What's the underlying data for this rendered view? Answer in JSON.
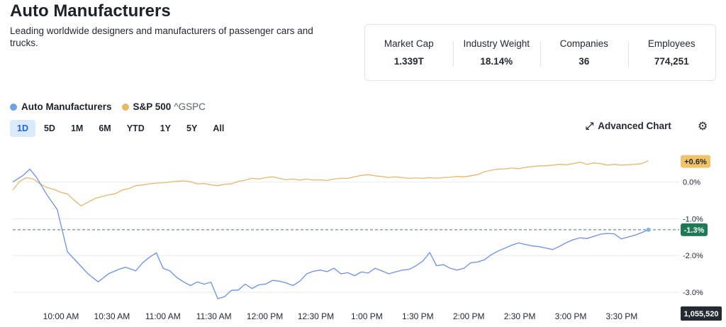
{
  "header": {
    "title": "Auto Manufacturers",
    "description": "Leading worldwide designers and manufacturers of passenger cars and trucks."
  },
  "stats": [
    {
      "label": "Market Cap",
      "value": "1.339T"
    },
    {
      "label": "Industry Weight",
      "value": "18.14%"
    },
    {
      "label": "Companies",
      "value": "36"
    },
    {
      "label": "Employees",
      "value": "774,251"
    }
  ],
  "legend": {
    "series1": "Auto Manufacturers",
    "series2": "S&P 500",
    "series2_ticker": "^GSPC"
  },
  "ranges": [
    "1D",
    "5D",
    "1M",
    "6M",
    "YTD",
    "1Y",
    "5Y",
    "All"
  ],
  "active_range": "1D",
  "toolbar": {
    "advanced_chart": "Advanced Chart",
    "advanced_icon": "expand-arrow-icon",
    "settings_icon": "gear-icon"
  },
  "chart_data": {
    "type": "line",
    "x_ticks": [
      "10:00 AM",
      "10:30 AM",
      "11:00 AM",
      "11:30 AM",
      "12:00 PM",
      "12:30 PM",
      "1:00 PM",
      "1:30 PM",
      "2:00 PM",
      "2:30 PM",
      "3:00 PM",
      "3:30 PM"
    ],
    "y_ticks": [
      "0.0%",
      "-1.0%",
      "-2.0%",
      "-3.0%"
    ],
    "ylim": [
      -3.35,
      0.9
    ],
    "grid": true,
    "reference_line": -1.3,
    "badges": {
      "sp500_last": "+0.6%",
      "auto_last": "-1.3%",
      "volume": "1,055,520"
    },
    "series": [
      {
        "name": "Auto Manufacturers",
        "color": "#6b8ff0",
        "points": [
          [
            0,
            0.0
          ],
          [
            3,
            0.18
          ],
          [
            5,
            0.35
          ],
          [
            7,
            0.12
          ],
          [
            10,
            -0.35
          ],
          [
            13,
            -0.75
          ],
          [
            16,
            -1.9
          ],
          [
            19,
            -2.2
          ],
          [
            22,
            -2.5
          ],
          [
            25,
            -2.72
          ],
          [
            28,
            -2.5
          ],
          [
            31,
            -2.38
          ],
          [
            33,
            -2.32
          ],
          [
            36,
            -2.42
          ],
          [
            38,
            -2.2
          ],
          [
            40,
            -2.05
          ],
          [
            42,
            -1.93
          ],
          [
            44,
            -2.35
          ],
          [
            46,
            -2.42
          ],
          [
            48,
            -2.6
          ],
          [
            50,
            -2.72
          ],
          [
            52,
            -2.82
          ],
          [
            54,
            -2.72
          ],
          [
            56,
            -2.78
          ],
          [
            58,
            -2.73
          ],
          [
            60,
            -3.18
          ],
          [
            62,
            -3.12
          ],
          [
            64,
            -2.95
          ],
          [
            66,
            -2.94
          ],
          [
            68,
            -2.78
          ],
          [
            70,
            -2.9
          ],
          [
            72,
            -2.8
          ],
          [
            74,
            -2.78
          ],
          [
            76,
            -2.68
          ],
          [
            78,
            -2.7
          ],
          [
            80,
            -2.75
          ],
          [
            82,
            -2.82
          ],
          [
            84,
            -2.7
          ],
          [
            86,
            -2.5
          ],
          [
            88,
            -2.43
          ],
          [
            90,
            -2.4
          ],
          [
            92,
            -2.44
          ],
          [
            94,
            -2.35
          ],
          [
            96,
            -2.5
          ],
          [
            98,
            -2.47
          ],
          [
            100,
            -2.55
          ],
          [
            102,
            -2.45
          ],
          [
            104,
            -2.48
          ],
          [
            106,
            -2.35
          ],
          [
            108,
            -2.42
          ],
          [
            110,
            -2.5
          ],
          [
            112,
            -2.45
          ],
          [
            114,
            -2.4
          ],
          [
            116,
            -2.38
          ],
          [
            118,
            -2.28
          ],
          [
            120,
            -2.15
          ],
          [
            122,
            -1.92
          ],
          [
            124,
            -2.28
          ],
          [
            126,
            -2.25
          ],
          [
            128,
            -2.35
          ],
          [
            130,
            -2.4
          ],
          [
            132,
            -2.35
          ],
          [
            134,
            -2.2
          ],
          [
            136,
            -2.18
          ],
          [
            138,
            -2.12
          ],
          [
            140,
            -1.98
          ],
          [
            142,
            -1.88
          ],
          [
            144,
            -1.8
          ],
          [
            146,
            -1.72
          ],
          [
            148,
            -1.66
          ],
          [
            150,
            -1.7
          ],
          [
            152,
            -1.74
          ],
          [
            154,
            -1.76
          ],
          [
            156,
            -1.8
          ],
          [
            158,
            -1.84
          ],
          [
            160,
            -1.75
          ],
          [
            162,
            -1.65
          ],
          [
            164,
            -1.57
          ],
          [
            166,
            -1.52
          ],
          [
            168,
            -1.54
          ],
          [
            170,
            -1.48
          ],
          [
            172,
            -1.42
          ],
          [
            174,
            -1.4
          ],
          [
            176,
            -1.41
          ],
          [
            178,
            -1.55
          ],
          [
            180,
            -1.5
          ],
          [
            182,
            -1.45
          ],
          [
            184,
            -1.38
          ],
          [
            186,
            -1.3
          ]
        ]
      },
      {
        "name": "S&P 500",
        "color": "#e7b867",
        "points": [
          [
            0,
            -0.22
          ],
          [
            2,
            0.02
          ],
          [
            4,
            0.12
          ],
          [
            6,
            0.08
          ],
          [
            8,
            -0.05
          ],
          [
            10,
            -0.15
          ],
          [
            12,
            -0.2
          ],
          [
            14,
            -0.28
          ],
          [
            16,
            -0.32
          ],
          [
            18,
            -0.5
          ],
          [
            20,
            -0.65
          ],
          [
            22,
            -0.55
          ],
          [
            24,
            -0.45
          ],
          [
            26,
            -0.4
          ],
          [
            28,
            -0.35
          ],
          [
            30,
            -0.32
          ],
          [
            32,
            -0.22
          ],
          [
            34,
            -0.18
          ],
          [
            36,
            -0.1
          ],
          [
            38,
            -0.08
          ],
          [
            40,
            -0.05
          ],
          [
            42,
            -0.03
          ],
          [
            44,
            -0.02
          ],
          [
            46,
            -0.0
          ],
          [
            48,
            0.02
          ],
          [
            50,
            0.03
          ],
          [
            52,
            0.01
          ],
          [
            54,
            -0.05
          ],
          [
            56,
            -0.04
          ],
          [
            58,
            -0.08
          ],
          [
            60,
            -0.1
          ],
          [
            62,
            -0.06
          ],
          [
            64,
            -0.05
          ],
          [
            66,
            0.02
          ],
          [
            68,
            0.05
          ],
          [
            70,
            0.1
          ],
          [
            72,
            0.08
          ],
          [
            74,
            0.12
          ],
          [
            76,
            0.14
          ],
          [
            78,
            0.1
          ],
          [
            80,
            0.06
          ],
          [
            82,
            0.08
          ],
          [
            84,
            0.05
          ],
          [
            86,
            0.08
          ],
          [
            88,
            0.05
          ],
          [
            90,
            0.06
          ],
          [
            92,
            0.04
          ],
          [
            94,
            0.08
          ],
          [
            96,
            0.1
          ],
          [
            98,
            0.1
          ],
          [
            100,
            0.14
          ],
          [
            102,
            0.18
          ],
          [
            104,
            0.2
          ],
          [
            106,
            0.17
          ],
          [
            108,
            0.15
          ],
          [
            110,
            0.12
          ],
          [
            112,
            0.14
          ],
          [
            114,
            0.12
          ],
          [
            116,
            0.1
          ],
          [
            118,
            0.11
          ],
          [
            120,
            0.1
          ],
          [
            122,
            0.12
          ],
          [
            124,
            0.1
          ],
          [
            126,
            0.12
          ],
          [
            128,
            0.13
          ],
          [
            130,
            0.15
          ],
          [
            132,
            0.14
          ],
          [
            134,
            0.17
          ],
          [
            136,
            0.2
          ],
          [
            138,
            0.28
          ],
          [
            140,
            0.32
          ],
          [
            142,
            0.35
          ],
          [
            144,
            0.36
          ],
          [
            146,
            0.38
          ],
          [
            148,
            0.36
          ],
          [
            150,
            0.4
          ],
          [
            152,
            0.42
          ],
          [
            154,
            0.44
          ],
          [
            156,
            0.44
          ],
          [
            158,
            0.46
          ],
          [
            160,
            0.48
          ],
          [
            162,
            0.47
          ],
          [
            164,
            0.5
          ],
          [
            166,
            0.54
          ],
          [
            168,
            0.48
          ],
          [
            170,
            0.52
          ],
          [
            172,
            0.5
          ],
          [
            174,
            0.46
          ],
          [
            176,
            0.48
          ],
          [
            178,
            0.46
          ],
          [
            180,
            0.47
          ],
          [
            182,
            0.48
          ],
          [
            184,
            0.5
          ],
          [
            186,
            0.58
          ]
        ]
      }
    ]
  }
}
